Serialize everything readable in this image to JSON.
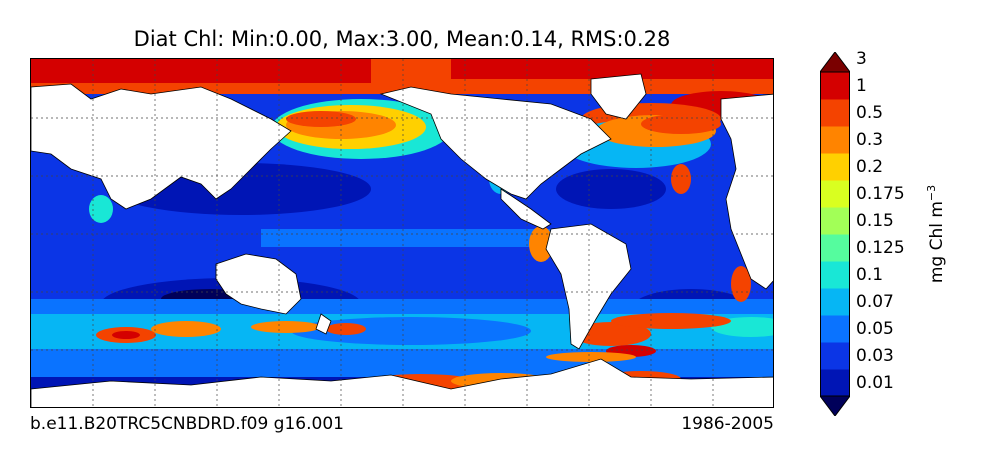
{
  "title": "Diat Chl: Min:0.00, Max:3.00, Mean:0.14, RMS:0.28",
  "footer": {
    "case": "b.e11.B20TRC5CNBDRD.f09 g16.001",
    "years": "1986-2005"
  },
  "colorbar": {
    "unit_main": "mg Chl m",
    "unit_exp": "−3",
    "levels": [
      {
        "label": "",
        "color": "#00005a"
      },
      {
        "label": "0.01",
        "color": "#0015b5"
      },
      {
        "label": "0.03",
        "color": "#0b35e6"
      },
      {
        "label": "0.05",
        "color": "#0a73ff"
      },
      {
        "label": "0.07",
        "color": "#06b6f4"
      },
      {
        "label": "0.1",
        "color": "#19e7d6"
      },
      {
        "label": "0.125",
        "color": "#55fc9e"
      },
      {
        "label": "0.15",
        "color": "#a2ff57"
      },
      {
        "label": "0.175",
        "color": "#d9ff20"
      },
      {
        "label": "0.2",
        "color": "#ffd000"
      },
      {
        "label": "0.3",
        "color": "#ff8400"
      },
      {
        "label": "0.5",
        "color": "#f44300"
      },
      {
        "label": "1",
        "color": "#d40000"
      },
      {
        "label": "3",
        "color": "#7a0000"
      }
    ]
  },
  "map": {
    "land_color": "#ffffff",
    "gridlines": true,
    "gridline_style": "dotted"
  }
}
